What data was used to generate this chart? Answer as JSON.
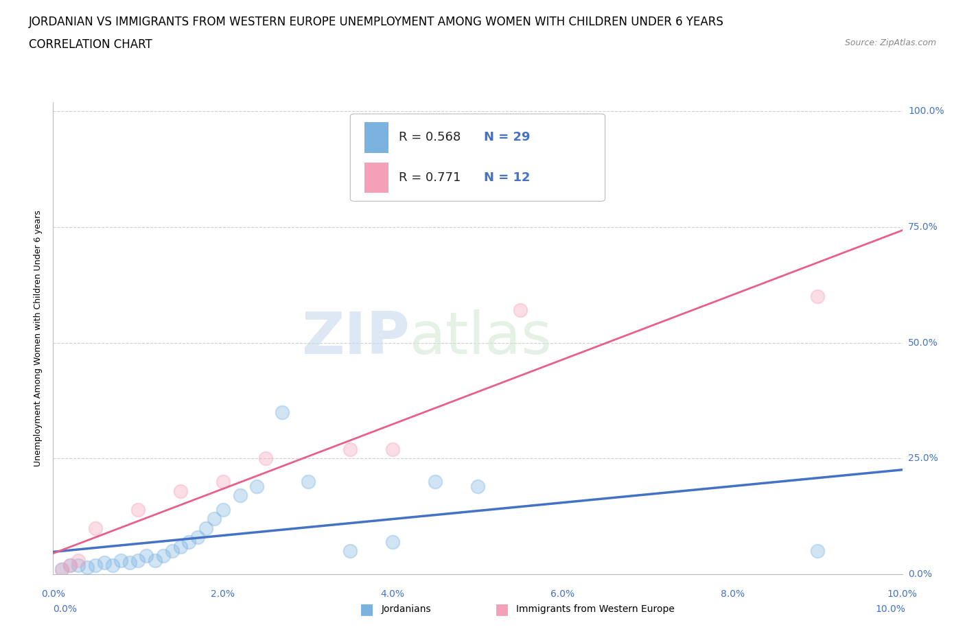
{
  "title_line1": "JORDANIAN VS IMMIGRANTS FROM WESTERN EUROPE UNEMPLOYMENT AMONG WOMEN WITH CHILDREN UNDER 6 YEARS",
  "title_line2": "CORRELATION CHART",
  "source": "Source: ZipAtlas.com",
  "ylabel_label": "Unemployment Among Women with Children Under 6 years",
  "jordanian_points": [
    [
      0.001,
      0.01
    ],
    [
      0.002,
      0.02
    ],
    [
      0.003,
      0.02
    ],
    [
      0.004,
      0.015
    ],
    [
      0.005,
      0.02
    ],
    [
      0.006,
      0.025
    ],
    [
      0.007,
      0.02
    ],
    [
      0.008,
      0.03
    ],
    [
      0.009,
      0.025
    ],
    [
      0.01,
      0.03
    ],
    [
      0.011,
      0.04
    ],
    [
      0.012,
      0.03
    ],
    [
      0.013,
      0.04
    ],
    [
      0.014,
      0.05
    ],
    [
      0.015,
      0.06
    ],
    [
      0.016,
      0.07
    ],
    [
      0.017,
      0.08
    ],
    [
      0.018,
      0.1
    ],
    [
      0.019,
      0.12
    ],
    [
      0.02,
      0.14
    ],
    [
      0.022,
      0.17
    ],
    [
      0.024,
      0.19
    ],
    [
      0.027,
      0.35
    ],
    [
      0.03,
      0.2
    ],
    [
      0.035,
      0.05
    ],
    [
      0.04,
      0.07
    ],
    [
      0.045,
      0.2
    ],
    [
      0.05,
      0.19
    ],
    [
      0.09,
      0.05
    ]
  ],
  "immigrant_points": [
    [
      0.001,
      0.01
    ],
    [
      0.002,
      0.02
    ],
    [
      0.003,
      0.03
    ],
    [
      0.005,
      0.1
    ],
    [
      0.01,
      0.14
    ],
    [
      0.015,
      0.18
    ],
    [
      0.02,
      0.2
    ],
    [
      0.025,
      0.25
    ],
    [
      0.035,
      0.27
    ],
    [
      0.04,
      0.27
    ],
    [
      0.055,
      0.57
    ],
    [
      0.09,
      0.6
    ]
  ],
  "jordanian_color": "#7ab3e0",
  "immigrant_color": "#f4a0b8",
  "jordanian_trend_color": "#4472c4",
  "immigrant_trend_color": "#e8608a",
  "background_color": "#ffffff",
  "grid_color": "#d0d0d0",
  "watermark_zip": "ZIP",
  "watermark_atlas": "atlas",
  "title_fontsize": 12,
  "axis_label_fontsize": 9,
  "tick_fontsize": 10,
  "legend_fontsize": 13,
  "xmin": 0.0,
  "xmax": 0.1,
  "ymin": 0.0,
  "ymax": 1.02,
  "r_jordan": 0.568,
  "n_jordan": 29,
  "r_immig": 0.771,
  "n_immig": 12,
  "ytick_vals": [
    0.0,
    0.25,
    0.5,
    0.75,
    1.0
  ],
  "ytick_labels": [
    "0.0%",
    "25.0%",
    "50.0%",
    "75.0%",
    "100.0%"
  ],
  "tick_color": "#4472c4"
}
